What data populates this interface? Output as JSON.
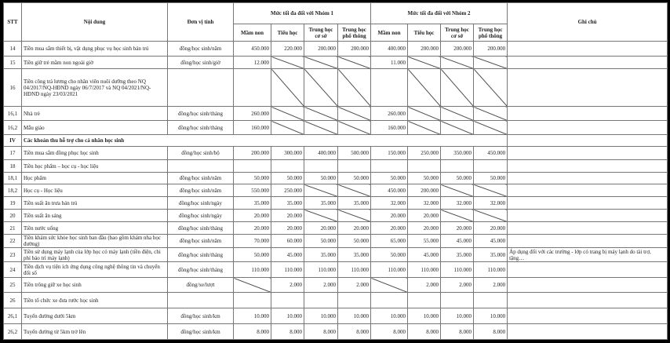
{
  "header": {
    "stt": "STT",
    "content": "Nội dung",
    "unit": "Đơn vị tính",
    "group1": "Mức tối đa đối với Nhóm 1",
    "group2": "Mức tối đa đối với Nhóm 2",
    "note": "Ghi chú",
    "levels": [
      "Mầm non",
      "Tiểu học",
      "Trung học cơ sở",
      "Trung học phổ thông"
    ]
  },
  "rows": [
    {
      "stt": "14",
      "content": "Tiền mua sắm thiết bị, vật dụng phục vụ học sinh bán trú",
      "unit": "đồng/học sinh/năm",
      "g1": [
        "450.000",
        "220.000",
        "200.000",
        "200.000"
      ],
      "g2": [
        "400.000",
        "200.000",
        "200.000",
        "200.000"
      ],
      "note": ""
    },
    {
      "stt": "15",
      "content": "Tiền giữ trẻ mầm non ngoài giờ",
      "unit": "đồng/học sinh/giờ",
      "g1": [
        "12.000",
        null,
        null,
        null
      ],
      "g2": [
        "11.000",
        null,
        null,
        null
      ],
      "note": ""
    },
    {
      "stt": "16",
      "content": "Tiền công trả lương cho nhân viên nuôi dưỡng theo NQ 04/2017/NQ-HĐND ngày 06/7/2017 và NQ 04/2021/NQ-HĐND ngày 23/03/2021",
      "unit": "",
      "g1": [
        "",
        null,
        null,
        null
      ],
      "g2": [
        "",
        null,
        null,
        null
      ],
      "note": ""
    },
    {
      "stt": "16,1",
      "content": "Nhà trẻ",
      "unit": "đồng/học sinh/tháng",
      "g1": [
        "260.000",
        null,
        null,
        null
      ],
      "g2": [
        "260.000",
        null,
        null,
        null
      ],
      "note": ""
    },
    {
      "stt": "16,2",
      "content": "Mẫu giáo",
      "unit": "đồng/học sinh/tháng",
      "g1": [
        "160.000",
        null,
        null,
        null
      ],
      "g2": [
        "160.000",
        null,
        null,
        null
      ],
      "note": ""
    },
    {
      "stt": "IV",
      "content": "Các khoản thu hỗ trợ cho cá nhân học sinh",
      "section": true,
      "note": ""
    },
    {
      "stt": "17",
      "content": "Tiền mua sắm đồng phục học sinh",
      "unit": "đồng/học sinh/bộ",
      "g1": [
        "200.000",
        "300.000",
        "400.000",
        "500.000"
      ],
      "g2": [
        "150.000",
        "250.000",
        "350.000",
        "450.000"
      ],
      "note": ""
    },
    {
      "stt": "18",
      "content": "Tiền học phẩm – học cụ - học liệu",
      "unit": "",
      "g1": [
        "",
        "",
        "",
        ""
      ],
      "g2": [
        "",
        "",
        "",
        ""
      ],
      "note": ""
    },
    {
      "stt": "18,1",
      "content": "Học phẩm",
      "unit": "đồng/học sinh/năm",
      "g1": [
        "50.000",
        "50.000",
        "50.000",
        "50.000"
      ],
      "g2": [
        "50.000",
        "50.000",
        "50.000",
        "50.000"
      ],
      "note": ""
    },
    {
      "stt": "18,2",
      "content": "Học cụ - Học liệu",
      "unit": "đồng/học sinh/năm",
      "g1": [
        "550.000",
        "250.000",
        null,
        null
      ],
      "g2": [
        "450.000",
        "200.000",
        null,
        null
      ],
      "note": ""
    },
    {
      "stt": "19",
      "content": "Tiền suất ăn trưa bán trú",
      "unit": "đồng/học sinh/ngày",
      "g1": [
        "35.000",
        "35.000",
        "35.000",
        "35.000"
      ],
      "g2": [
        "32.000",
        "32.000",
        "32.000",
        "32.000"
      ],
      "note": ""
    },
    {
      "stt": "20",
      "content": "Tiền suất ăn sáng",
      "unit": "đồng/học sinh/ngày",
      "g1": [
        "20.000",
        "20.000",
        null,
        null
      ],
      "g2": [
        "20.000",
        "20.000",
        null,
        null
      ],
      "note": ""
    },
    {
      "stt": "21",
      "content": "Tiền nước uống",
      "unit": "đồng/học sinh/tháng",
      "g1": [
        "20.000",
        "20.000",
        "20.000",
        "20.000"
      ],
      "g2": [
        "20.000",
        "20.000",
        "20.000",
        "20.000"
      ],
      "note": ""
    },
    {
      "stt": "22",
      "content": "Tiền khám sức khỏe học sinh ban đầu (bao gồm khám nha học đường)",
      "unit": "đồng/học sinh/năm",
      "g1": [
        "70.000",
        "60.000",
        "50.000",
        "50.000"
      ],
      "g2": [
        "65.000",
        "55.000",
        "45.000",
        "45.000"
      ],
      "note": ""
    },
    {
      "stt": "23",
      "content": "Tiền sử dụng máy lạnh của lớp học có máy lạnh (tiền điện, chi phí bảo trì máy lạnh)",
      "unit": "đồng/học sinh/tháng",
      "g1": [
        "50.000",
        "45.000",
        "35.000",
        "35.000"
      ],
      "g2": [
        "50.000",
        "45.000",
        "35.000",
        "35.000"
      ],
      "note": "Áp dụng đối với các trường - lớp có trang bị máy lạnh do tài trợ, tặng…"
    },
    {
      "stt": "24",
      "content": "Tiền dịch vụ tiện ích ứng dụng công nghệ thông tin và chuyển đổi số",
      "unit": "đồng/học sinh/tháng",
      "g1": [
        "110.000",
        "110.000",
        "110.000",
        "110.000"
      ],
      "g2": [
        "110.000",
        "110.000",
        "110.000",
        "110.000"
      ],
      "note": ""
    },
    {
      "stt": "25",
      "content": "Tiền trông giữ xe học sinh",
      "unit": "đồng/xe/lượt",
      "g1": [
        null,
        "2.000",
        "2.000",
        "2.000"
      ],
      "g2": [
        null,
        "2.000",
        "2.000",
        "2.000"
      ],
      "note": ""
    },
    {
      "stt": "26",
      "content": "Tiền tổ chức xe đưa rước học sinh",
      "unit": "",
      "g1": [
        "",
        "",
        "",
        ""
      ],
      "g2": [
        "",
        "",
        "",
        ""
      ],
      "note": ""
    },
    {
      "stt": "26,1",
      "content": "Tuyến đường dưới 5km",
      "unit": "đồng/học sinh/km",
      "g1": [
        "10.000",
        "10.000",
        "10.000",
        "10.000"
      ],
      "g2": [
        "10.000",
        "10.000",
        "10.000",
        "10.000"
      ],
      "note": ""
    },
    {
      "stt": "26,2",
      "content": "Tuyến đường từ 5km trở lên",
      "unit": "đồng/học sinh/km",
      "g1": [
        "8.000",
        "8.000",
        "8.000",
        "8.000"
      ],
      "g2": [
        "8.000",
        "8.000",
        "8.000",
        "8.000"
      ],
      "note": ""
    }
  ]
}
